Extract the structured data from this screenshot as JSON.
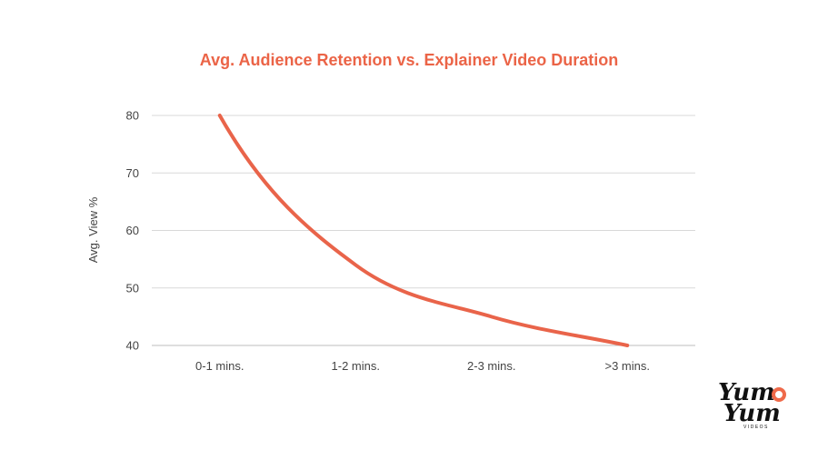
{
  "chart_data": {
    "type": "line",
    "title": "Avg. Audience Retention vs. Explainer Video Duration",
    "ylabel": "Avg. View %",
    "xlabel": "",
    "categories": [
      "0-1 mins.",
      "1-2 mins.",
      "2-3 mins.",
      ">3 mins."
    ],
    "series": [
      {
        "values": [
          80,
          54,
          45,
          40
        ]
      }
    ],
    "ylim": [
      40,
      80
    ],
    "yticks": [
      40,
      50,
      60,
      70,
      80
    ],
    "grid": true,
    "legend": "none",
    "smooth": true
  },
  "colors": {
    "title": "#eb6447",
    "line": "#e9644a",
    "grid": "#d9d9d9",
    "axis_text": "#444444",
    "logo_accent": "#ef6a4a"
  },
  "logo": {
    "line1": "Yum",
    "line2": "Yum",
    "sub": "VIDEOS"
  }
}
